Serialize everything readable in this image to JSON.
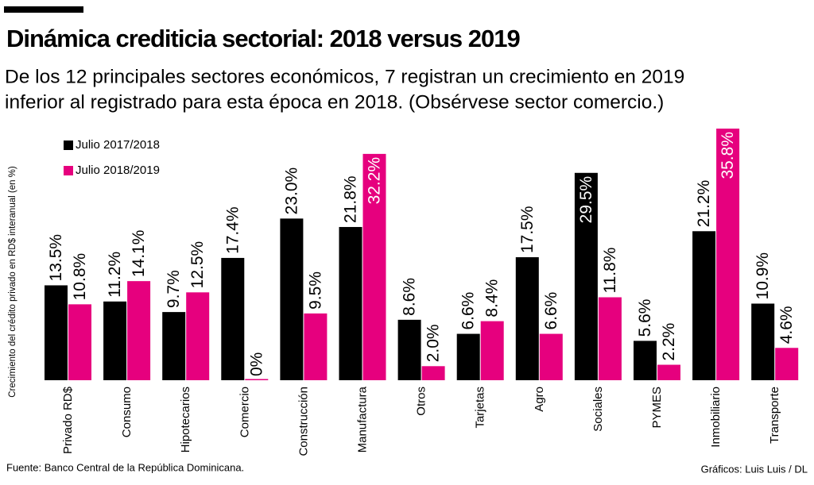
{
  "chart_data": {
    "type": "bar",
    "title": "Dinámica crediticia sectorial: 2018 versus 2019",
    "subtitle": [
      "De los 12 principales sectores económicos, 7 registran un crecimiento en 2019",
      "inferior al registrado para esta época en 2018. (Obsérvese sector comercio.)"
    ],
    "y_label": "Crecimiento del crédito privado en RD$ interanual (en %)",
    "source": "Fuente: Banco Central de la República Dominicana.",
    "credit": "Gráficos: Luis Luis / DL",
    "legend": "top-left",
    "categories": [
      "Privado RD$",
      "Consumo",
      "Hipotecarios",
      "Comercio",
      "Construcción",
      "Manufactura",
      "Otros",
      "Tarjetas",
      "Agro",
      "Sociales",
      "PYMES",
      "Inmobiliario",
      "Transporte"
    ],
    "series": [
      {
        "name": "Julio 2017/2018",
        "color": "#000000",
        "values": [
          13.5,
          11.2,
          9.7,
          17.4,
          23.0,
          21.8,
          8.6,
          6.6,
          17.5,
          29.5,
          5.6,
          21.2,
          10.9
        ],
        "value_labels": [
          "13.5%",
          "11.2%",
          "9.7%",
          "17.4%",
          "23.0%",
          "21.8%",
          "8.6%",
          "6.6%",
          "17.5%",
          "29.5%",
          "5.6%",
          "21.2%",
          "10.9%"
        ]
      },
      {
        "name": "Julio 2018/2019",
        "color": "#e6007e",
        "values": [
          10.8,
          14.1,
          12.5,
          0,
          9.5,
          32.2,
          2.0,
          8.4,
          6.6,
          11.8,
          2.2,
          35.8,
          4.6
        ],
        "value_labels": [
          "10.8%",
          "14.1%",
          "12.5%",
          "0%",
          "9.5%",
          "32.2%",
          "2.0%",
          "8.4%",
          "6.6%",
          "11.8%",
          "2.2%",
          "35.8%",
          "4.6%"
        ]
      }
    ]
  }
}
